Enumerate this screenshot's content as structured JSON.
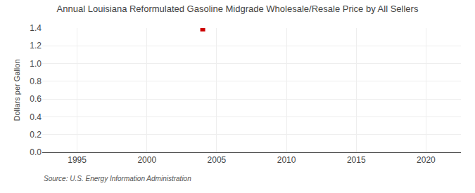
{
  "chart_data": {
    "type": "scatter",
    "title": "Annual Louisiana Reformulated Gasoline Midgrade Wholesale/Resale Price by All Sellers",
    "ylabel": "Dollars per Gallon",
    "annotations": [
      "Source: U.S. Energy Information Administration"
    ],
    "x": [
      2004
    ],
    "values": [
      1.39
    ],
    "color": "#cc0000",
    "marker": "square",
    "xlim": [
      1992.5,
      2022.5
    ],
    "xticks": [
      1995,
      2000,
      2005,
      2010,
      2015,
      2020
    ],
    "ylim": [
      0,
      1.4
    ],
    "yticks": [
      {
        "value": 0,
        "label": "0.0"
      },
      0.2,
      0.4,
      0.6,
      0.8,
      {
        "value": 1,
        "label": "1.0"
      },
      1.2,
      1.4
    ],
    "grid": true
  }
}
